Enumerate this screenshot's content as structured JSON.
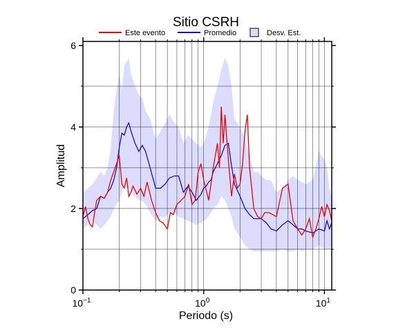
{
  "chart_data": {
    "type": "line",
    "title": "Sitio CSRH",
    "xlabel": "Periodo (s)",
    "ylabel": "Amplitud",
    "x_scale": "log",
    "xlim": [
      0.1,
      11.5
    ],
    "ylim": [
      0,
      6.1
    ],
    "x_ticks": [
      {
        "value": 0.1,
        "base": "10",
        "exp": "−1"
      },
      {
        "value": 1,
        "base": "10",
        "exp": "0"
      },
      {
        "value": 10,
        "base": "10",
        "exp": "1"
      }
    ],
    "y_ticks": [
      0,
      2,
      4,
      6
    ],
    "grid": true,
    "legend_position": "top",
    "legend": {
      "este_evento": "Este evento",
      "promedio": "Promedio",
      "desv_est": "Desv. Est."
    },
    "colors": {
      "este_evento": "#ee0000",
      "promedio": "#0000dd",
      "desv_est_fill": "#dcdcff",
      "grid": "#000000"
    },
    "series": [
      {
        "name": "Este evento",
        "x": [
          0.1,
          0.105,
          0.11,
          0.115,
          0.12,
          0.125,
          0.13,
          0.14,
          0.15,
          0.16,
          0.17,
          0.18,
          0.19,
          0.2,
          0.21,
          0.22,
          0.23,
          0.24,
          0.25,
          0.26,
          0.28,
          0.3,
          0.32,
          0.34,
          0.37,
          0.4,
          0.43,
          0.46,
          0.5,
          0.53,
          0.56,
          0.6,
          0.65,
          0.7,
          0.75,
          0.8,
          0.85,
          0.9,
          0.95,
          1.0,
          1.05,
          1.1,
          1.15,
          1.2,
          1.25,
          1.3,
          1.35,
          1.4,
          1.45,
          1.5,
          1.6,
          1.7,
          1.8,
          1.9,
          2.0,
          2.1,
          2.2,
          2.3,
          2.4,
          2.5,
          2.6,
          2.8,
          3.0,
          3.2,
          3.5,
          4.0,
          4.5,
          5.0,
          5.5,
          6.0,
          6.5,
          7.0,
          7.5,
          8.0,
          8.5,
          9.0,
          9.5,
          10.0,
          10.5,
          11.0,
          11.5
        ],
        "values": [
          1.8,
          2.05,
          1.75,
          1.6,
          1.55,
          1.9,
          2.2,
          2.3,
          2.25,
          2.4,
          2.7,
          2.9,
          3.1,
          3.3,
          2.6,
          2.5,
          2.75,
          2.3,
          2.4,
          2.55,
          2.35,
          2.5,
          2.3,
          2.65,
          2.2,
          1.9,
          1.7,
          1.65,
          1.5,
          1.9,
          1.85,
          2.1,
          2.2,
          2.3,
          2.6,
          2.1,
          2.2,
          2.9,
          3.1,
          2.7,
          2.45,
          2.2,
          2.6,
          3.0,
          3.3,
          3.6,
          3.0,
          4.5,
          3.6,
          4.3,
          3.2,
          2.3,
          2.85,
          2.5,
          2.6,
          3.1,
          3.9,
          4.3,
          3.0,
          2.5,
          2.0,
          1.8,
          1.75,
          1.9,
          1.9,
          1.8,
          2.5,
          2.6,
          1.7,
          1.5,
          1.35,
          1.5,
          1.75,
          1.3,
          1.5,
          1.75,
          2.05,
          1.8,
          2.1,
          1.95,
          1.7
        ]
      },
      {
        "name": "Promedio",
        "x": [
          0.1,
          0.11,
          0.12,
          0.13,
          0.14,
          0.15,
          0.16,
          0.17,
          0.18,
          0.19,
          0.2,
          0.21,
          0.22,
          0.23,
          0.24,
          0.25,
          0.27,
          0.29,
          0.31,
          0.33,
          0.36,
          0.4,
          0.44,
          0.48,
          0.52,
          0.57,
          0.62,
          0.68,
          0.74,
          0.8,
          0.87,
          0.95,
          1.0,
          1.05,
          1.1,
          1.15,
          1.2,
          1.3,
          1.4,
          1.5,
          1.6,
          1.7,
          1.8,
          2.0,
          2.2,
          2.4,
          2.6,
          2.8,
          3.0,
          3.3,
          3.6,
          4.0,
          4.5,
          5.0,
          5.5,
          6.0,
          6.5,
          7.0,
          8.0,
          9.0,
          10.0,
          10.5,
          11.0,
          11.5
        ],
        "values": [
          1.75,
          1.85,
          1.95,
          2.0,
          2.3,
          2.25,
          2.4,
          2.5,
          2.7,
          3.0,
          3.5,
          3.85,
          3.8,
          4.0,
          4.1,
          3.9,
          3.6,
          3.4,
          3.55,
          3.4,
          3.0,
          2.5,
          2.5,
          2.6,
          2.75,
          2.8,
          2.8,
          2.4,
          2.55,
          2.4,
          2.2,
          2.35,
          2.5,
          2.55,
          2.65,
          2.7,
          2.9,
          3.1,
          3.3,
          3.55,
          3.6,
          3.05,
          2.6,
          2.3,
          2.0,
          1.85,
          1.75,
          1.75,
          1.75,
          1.65,
          1.5,
          1.45,
          1.6,
          1.7,
          1.6,
          1.5,
          1.5,
          1.45,
          1.4,
          1.5,
          1.45,
          1.7,
          1.5,
          1.65
        ]
      }
    ],
    "band": {
      "name": "Desv. Est.",
      "x": [
        0.1,
        0.11,
        0.12,
        0.13,
        0.14,
        0.15,
        0.16,
        0.17,
        0.18,
        0.19,
        0.2,
        0.21,
        0.22,
        0.23,
        0.24,
        0.25,
        0.27,
        0.29,
        0.31,
        0.33,
        0.36,
        0.4,
        0.44,
        0.48,
        0.52,
        0.57,
        0.62,
        0.68,
        0.74,
        0.8,
        0.87,
        0.95,
        1.0,
        1.05,
        1.1,
        1.15,
        1.2,
        1.3,
        1.4,
        1.5,
        1.6,
        1.7,
        1.8,
        2.0,
        2.2,
        2.4,
        2.6,
        2.8,
        3.0,
        3.3,
        3.6,
        4.0,
        4.5,
        5.0,
        5.5,
        6.0,
        6.5,
        7.0,
        8.0,
        9.0,
        10.0,
        10.5,
        11.0,
        11.5
      ],
      "upper": [
        2.4,
        2.5,
        2.6,
        2.75,
        2.9,
        2.8,
        3.0,
        3.5,
        4.4,
        4.9,
        5.3,
        4.9,
        5.5,
        5.6,
        5.7,
        5.3,
        5.0,
        4.8,
        4.7,
        4.4,
        4.2,
        3.7,
        3.9,
        4.1,
        4.3,
        4.1,
        4.0,
        3.6,
        3.8,
        3.7,
        3.6,
        3.5,
        3.6,
        3.8,
        4.0,
        4.3,
        4.6,
        5.0,
        5.4,
        5.7,
        5.5,
        5.0,
        4.2,
        4.0,
        3.7,
        3.3,
        2.9,
        2.9,
        2.8,
        2.7,
        2.7,
        2.4,
        2.5,
        2.7,
        2.8,
        2.7,
        2.65,
        2.6,
        2.7,
        3.4,
        3.2,
        3.0,
        2.5,
        2.3
      ],
      "lower": [
        1.5,
        1.6,
        1.7,
        1.6,
        1.5,
        1.6,
        1.7,
        1.8,
        2.0,
        2.1,
        2.2,
        2.4,
        2.6,
        2.5,
        2.5,
        2.4,
        2.3,
        2.2,
        2.2,
        2.1,
        1.9,
        1.7,
        1.8,
        1.8,
        1.9,
        1.9,
        1.8,
        1.75,
        1.7,
        1.65,
        1.6,
        1.65,
        1.7,
        1.75,
        1.8,
        1.9,
        2.0,
        2.1,
        2.3,
        2.2,
        2.0,
        1.8,
        1.5,
        1.3,
        1.1,
        1.0,
        0.95,
        0.95,
        0.95,
        0.95,
        0.95,
        0.95,
        1.0,
        0.95,
        0.95,
        1.0,
        0.95,
        1.0,
        1.0,
        1.1,
        1.0,
        1.0,
        1.0,
        1.0
      ]
    }
  }
}
